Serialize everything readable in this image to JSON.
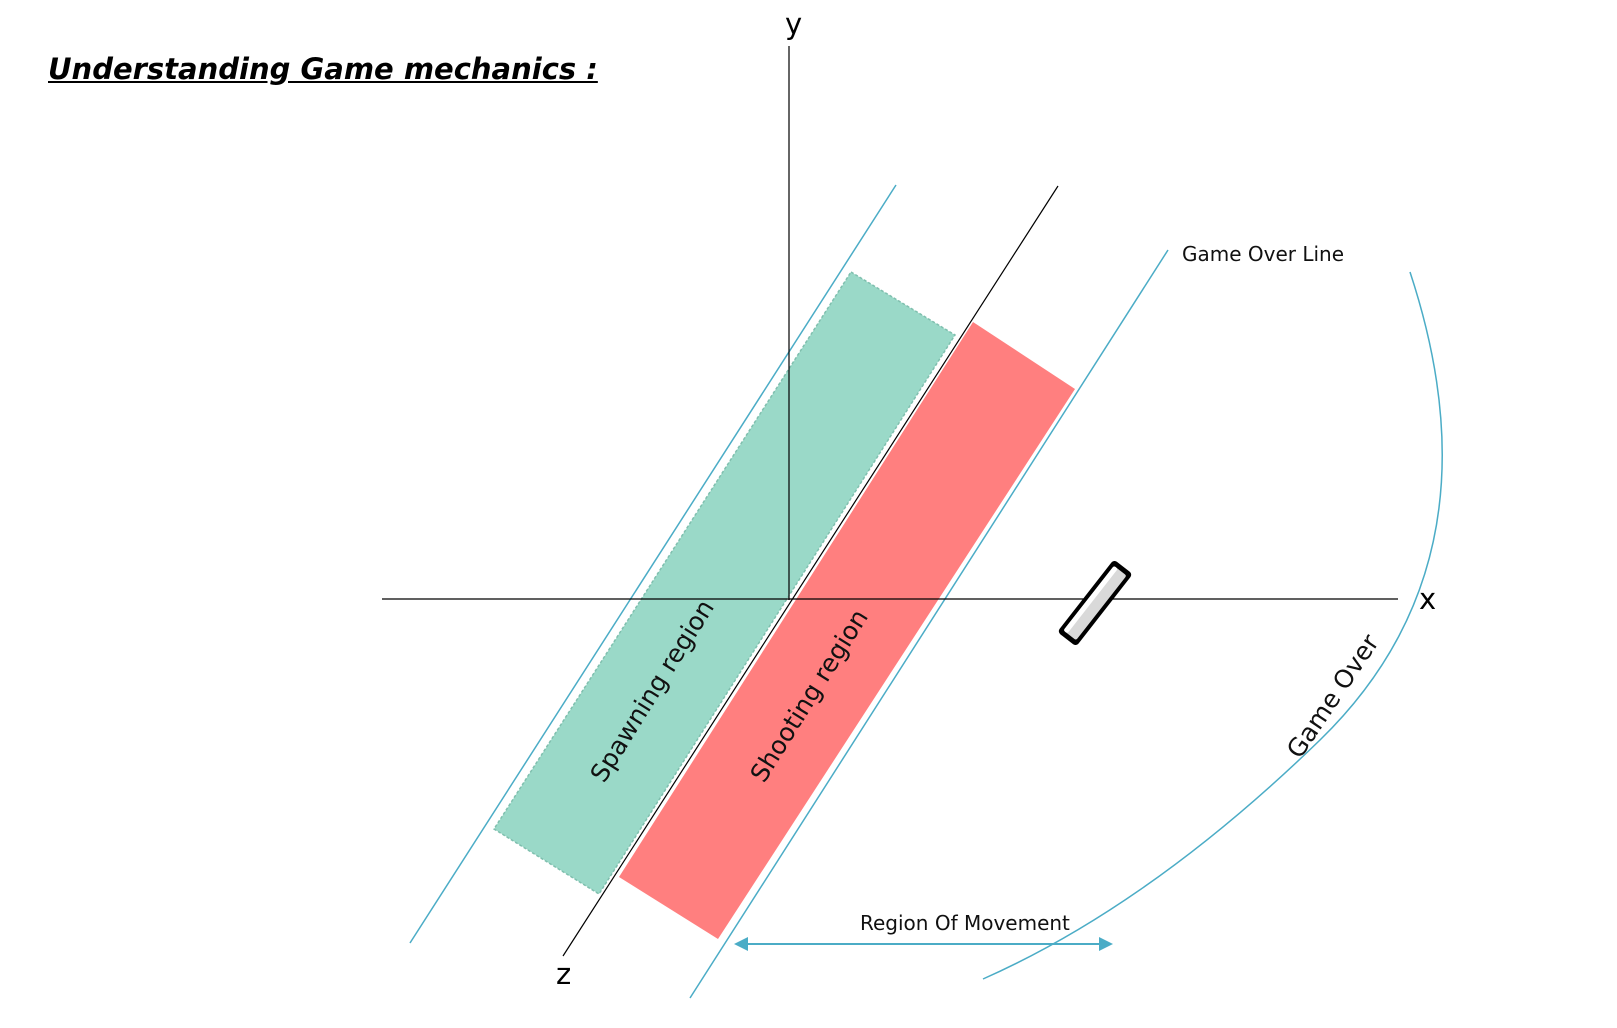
{
  "title": "Understanding Game mechanics :",
  "axes": {
    "x_label": "x",
    "y_label": "y",
    "z_label": "z"
  },
  "labels": {
    "game_over_line": "Game Over Line",
    "game_over": "Game Over",
    "region_of_movement": "Region Of Movement",
    "spawning_region": "Spawning region",
    "shooting_region": "Shooting region"
  },
  "icons": {
    "player": "tilted-device-icon"
  },
  "colors": {
    "spawning_region": "#9ad9c8",
    "shooting_region": "#ff7f7f",
    "guide_lines": "#4bacc6",
    "axes": "#000000"
  }
}
